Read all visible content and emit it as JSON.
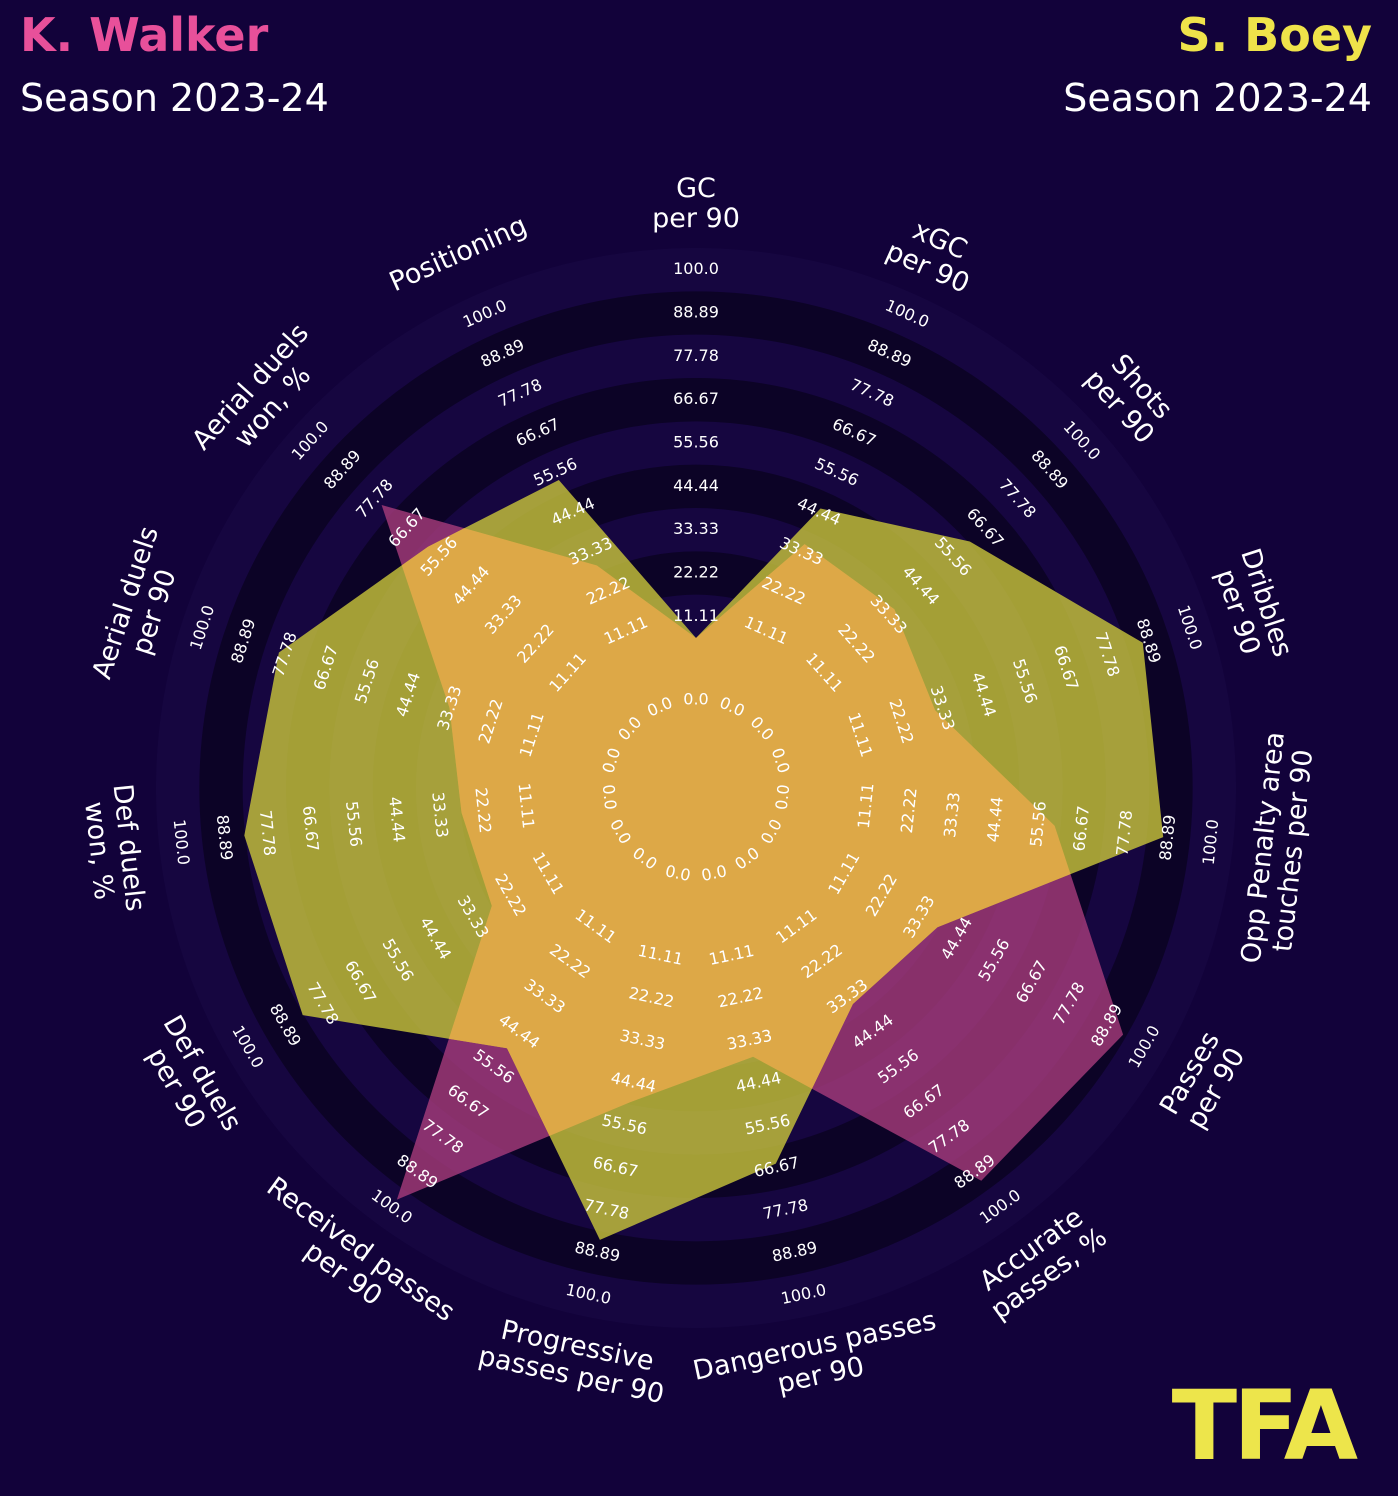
{
  "header": {
    "player1": {
      "name": "K. Walker",
      "season": "Season 2023-24",
      "color": "#e8509a"
    },
    "player2": {
      "name": "S. Boey",
      "season": "Season 2023-24",
      "color": "#efe34a"
    }
  },
  "logo": {
    "text": "TFA",
    "color": "#ede54b"
  },
  "colors": {
    "background": "#12023a",
    "ring_dark": "#0c0326",
    "ring_light": "#160640",
    "player1_fill": "#a33a7a",
    "player2_fill": "#c6c23a",
    "overlap_fill": "#e0a848"
  },
  "chart_data": {
    "type": "radar",
    "title": "",
    "axes": [
      "GC\nper 90",
      "xGC\nper 90",
      "Shots\nper 90",
      "Dribbles\nper 90",
      "Opp Penalty area\ntouches per 90",
      "Passes\nper 90",
      "Accurate\npasses, %",
      "Dangerous passes\nper 90",
      "Progressive\npasses per 90",
      "Received passes\nper 90",
      "Def duels\nper 90",
      "Def duels\nwon, %",
      "Aerial duels\nper 90",
      "Aerial duels\nwon, %",
      "Positioning"
    ],
    "ring_labels": [
      "0.0",
      "11.11",
      "22.22",
      "33.33",
      "44.44",
      "55.56",
      "66.67",
      "77.78",
      "88.89",
      "100.0"
    ],
    "range": [
      0,
      100
    ],
    "series": [
      {
        "name": "K. Walker",
        "values": [
          0,
          30,
          30,
          26,
          54,
          88,
          86,
          32,
          44,
          92,
          22,
          22,
          28,
          70,
          24
        ]
      },
      {
        "name": "S. Boey",
        "values": [
          0,
          40,
          56,
          82,
          82,
          33,
          30,
          60,
          80,
          44,
          78,
          78,
          74,
          54,
          48
        ]
      }
    ]
  }
}
